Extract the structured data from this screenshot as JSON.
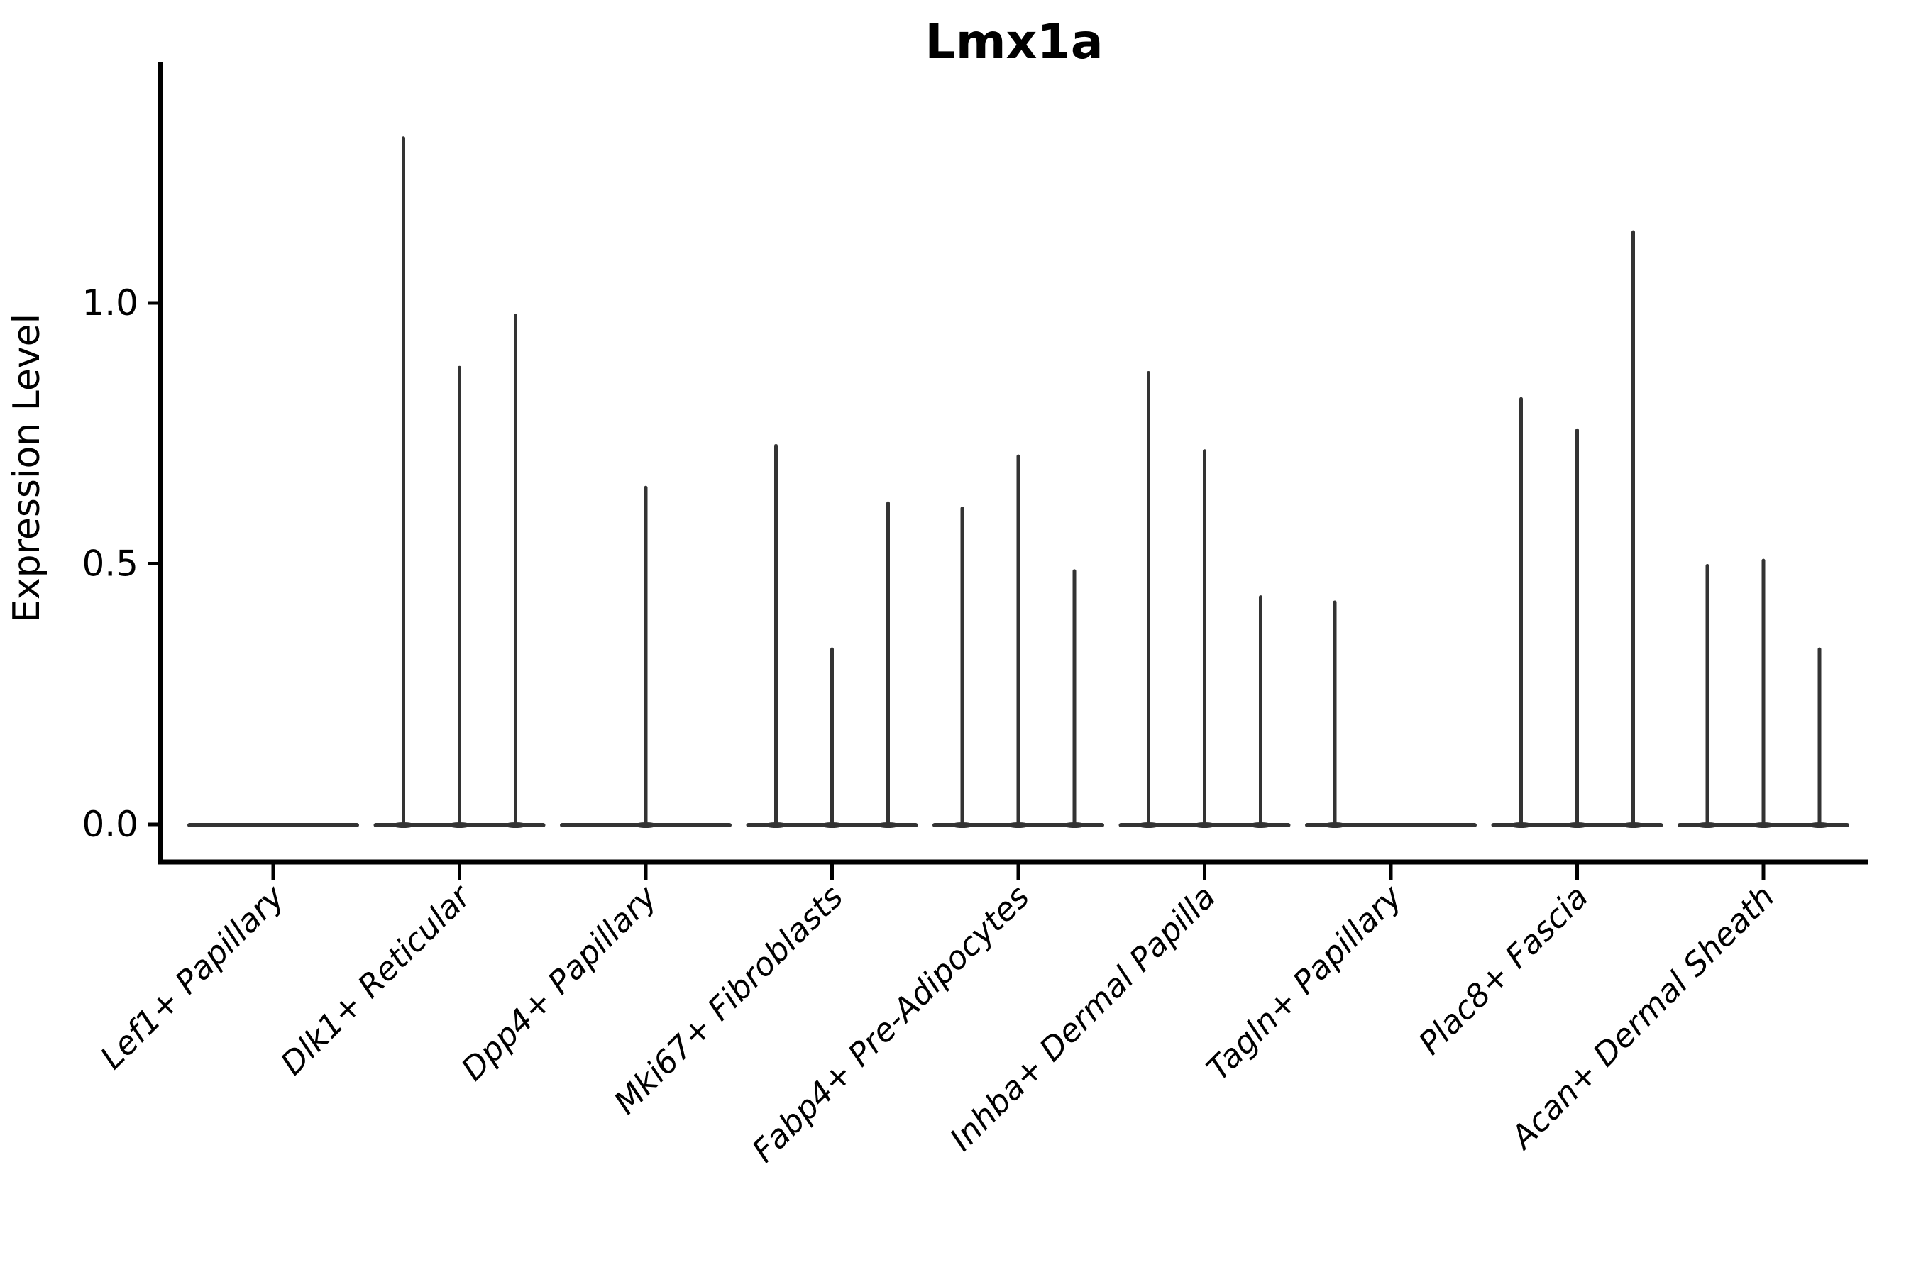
{
  "figure": {
    "background": "#ffffff",
    "title": "Lmx1a",
    "y_axis_label": "Expression Level",
    "y_tick_labels": [
      "0.0",
      "0.5",
      "1.0"
    ],
    "legend": "none"
  },
  "chart_data": {
    "type": "violin",
    "title": "Lmx1a",
    "xlabel": "",
    "ylabel": "Expression Level",
    "ylim": [
      0,
      1.45
    ],
    "yticks": [
      0.0,
      0.5,
      1.0
    ],
    "grid": false,
    "legend_position": "none",
    "x_tick_rotation_deg": 45,
    "x_tick_style": "italic",
    "colors": {
      "violin_stroke": "#333333",
      "axis": "#000000",
      "background": "#ffffff"
    },
    "categories": [
      "Lef1+ Papillary",
      "Dlk1+ Reticular",
      "Dpp4+ Papillary",
      "Mki67+ Fibroblasts",
      "Fabp4+ Pre-Adipocytes",
      "Inhba+ Dermal Papilla",
      "Tagln+ Papillary",
      "Plac8+ Fascia",
      "Acan+ Dermal Sheath"
    ],
    "violins": [
      {
        "category": "Lef1+ Papillary",
        "zero_base": true,
        "spikes": []
      },
      {
        "category": "Dlk1+ Reticular",
        "zero_base": true,
        "spikes": [
          {
            "slot": -1,
            "value": 1.32
          },
          {
            "slot": 0,
            "value": 0.88
          },
          {
            "slot": 1,
            "value": 0.98
          }
        ]
      },
      {
        "category": "Dpp4+ Papillary",
        "zero_base": true,
        "spikes": [
          {
            "slot": 0,
            "value": 0.65
          }
        ]
      },
      {
        "category": "Mki67+ Fibroblasts",
        "zero_base": true,
        "spikes": [
          {
            "slot": -1,
            "value": 0.73
          },
          {
            "slot": 0,
            "value": 0.34
          },
          {
            "slot": 1,
            "value": 0.62
          }
        ]
      },
      {
        "category": "Fabp4+ Pre-Adipocytes",
        "zero_base": true,
        "spikes": [
          {
            "slot": -1,
            "value": 0.61
          },
          {
            "slot": 0,
            "value": 0.71
          },
          {
            "slot": 1,
            "value": 0.49
          }
        ]
      },
      {
        "category": "Inhba+ Dermal Papilla",
        "zero_base": true,
        "spikes": [
          {
            "slot": -1,
            "value": 0.87
          },
          {
            "slot": 0,
            "value": 0.72
          },
          {
            "slot": 1,
            "value": 0.44
          }
        ]
      },
      {
        "category": "Tagln+ Papillary",
        "zero_base": true,
        "spikes": [
          {
            "slot": -1,
            "value": 0.43
          }
        ]
      },
      {
        "category": "Plac8+ Fascia",
        "zero_base": true,
        "spikes": [
          {
            "slot": -1,
            "value": 0.82
          },
          {
            "slot": 0,
            "value": 0.76
          },
          {
            "slot": 1,
            "value": 1.14
          }
        ]
      },
      {
        "category": "Acan+ Dermal Sheath",
        "zero_base": true,
        "spikes": [
          {
            "slot": -1,
            "value": 0.5
          },
          {
            "slot": 0,
            "value": 0.51
          },
          {
            "slot": 1,
            "value": 0.34
          }
        ]
      }
    ]
  }
}
